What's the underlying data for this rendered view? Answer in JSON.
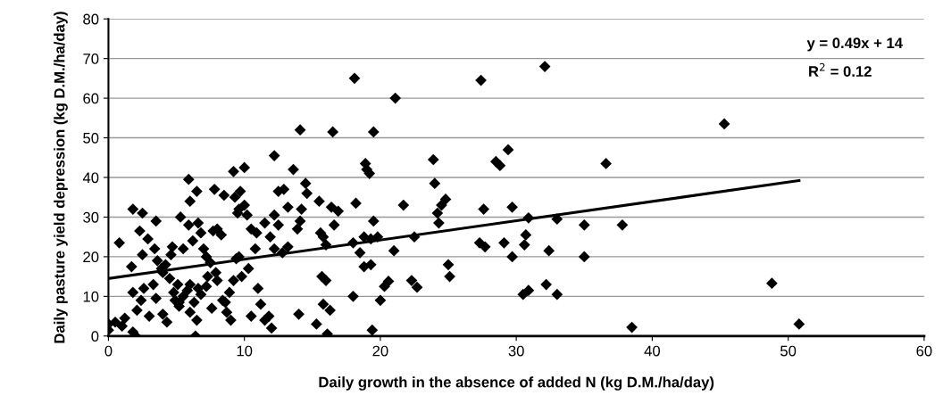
{
  "chart_data": {
    "type": "scatter",
    "xlabel": "Daily growth in the absence of added N (kg D.M./ha/day)",
    "ylabel": "Daily pasture yield depression (kg D.M./ha/day)",
    "xlim": [
      0,
      60
    ],
    "xticks": [
      0,
      10,
      20,
      30,
      40,
      50,
      60
    ],
    "ylim": [
      0,
      80
    ],
    "yticks": [
      0,
      10,
      20,
      30,
      40,
      50,
      60,
      70,
      80
    ],
    "grid": "y",
    "legend": false,
    "marker": "diamond",
    "annotations": [
      "y = 0.49x + 14",
      "R$^{2}$ = 0.12"
    ],
    "series": [
      {
        "color": "#000000",
        "x": [
          18.1,
          27.4,
          32.1,
          45.3,
          36.6,
          29.4,
          28.5,
          28.8,
          27.6,
          29.7,
          37.8,
          35,
          33,
          30.9,
          27.3,
          27.7,
          29.1,
          30.7,
          30.6,
          32.4,
          35,
          29.7,
          32.2,
          30.9,
          30.5,
          33,
          38.5,
          48.8,
          50.8,
          25,
          25.1,
          24.2,
          24.5,
          24.8,
          23.9,
          24,
          24.3,
          22.5,
          21.7,
          21,
          20.6,
          20.3,
          20,
          22.3,
          22.7,
          21.1,
          19.5,
          14.1,
          16.5,
          18.2,
          18.9,
          19,
          19.2,
          19.5,
          18.8,
          19.3,
          19.8,
          18,
          18.5,
          18.8,
          19.3,
          18,
          19.4,
          16.1,
          16.3,
          15.8,
          15.3,
          16,
          15.7,
          14,
          15.6,
          15.8,
          16,
          16.6,
          16.9,
          16.4,
          15.5,
          14.5,
          13.6,
          12.2,
          14.6,
          12.5,
          12.9,
          13.2,
          14.2,
          14.1,
          13.9,
          13.2,
          12.8,
          12.2,
          11.9,
          12.2,
          12.5,
          11.5,
          10.9,
          10.8,
          10.5,
          10.2,
          10,
          9.7,
          10,
          9.2,
          8.5,
          9.3,
          9.6,
          9.5,
          11.2,
          11.8,
          11.5,
          12,
          9.4,
          9.8,
          9.2,
          8.9,
          8.4,
          8.7,
          9,
          8.3,
          7.7,
          8,
          7.8,
          6.5,
          5.9,
          6,
          5.9,
          6.6,
          6.2,
          7,
          7.5,
          7.9,
          7.3,
          8,
          7.2,
          6.8,
          6.6,
          6,
          5.5,
          5.2,
          6,
          6.5,
          6.3,
          5.2,
          4.8,
          4.9,
          5.1,
          5.8,
          4.5,
          4.2,
          3.6,
          4.6,
          5.5,
          4.7,
          3.5,
          2.9,
          2.3,
          2.5,
          1.8,
          3.9,
          2.5,
          1.7,
          2.6,
          2.4,
          1.8,
          2.1,
          3,
          1.8,
          2,
          6.4,
          4,
          4.3,
          0.8,
          1.2,
          0.5,
          0,
          0,
          1,
          9.6,
          10.3,
          11,
          8.6,
          10.5,
          7.6,
          3.3,
          3.5,
          4,
          3.4,
          5.3,
          6.8,
          7.2
        ],
        "values": [
          65,
          64.5,
          68,
          53.5,
          43.5,
          47,
          44,
          43,
          32,
          32.5,
          28,
          28,
          29.5,
          29.8,
          23.5,
          22.5,
          23.5,
          25.5,
          23,
          21.5,
          20,
          20,
          13,
          11.5,
          10.5,
          10.5,
          2.2,
          13.3,
          3,
          18,
          15,
          31,
          33,
          34.5,
          44.5,
          38.5,
          28.5,
          25,
          33,
          21.5,
          13.8,
          12.5,
          9,
          14,
          12.3,
          60,
          51.5,
          52,
          51.5,
          33.5,
          43.5,
          42,
          41,
          29,
          25,
          24.5,
          25,
          23.5,
          21,
          17.5,
          18,
          10,
          1.5,
          0.5,
          6.5,
          8,
          3,
          14,
          15,
          5.5,
          26,
          25,
          23,
          28,
          31.5,
          32.5,
          34,
          38.5,
          42,
          45.5,
          36,
          36.5,
          37,
          32.5,
          32,
          29,
          27,
          22.5,
          21,
          22,
          25,
          30.5,
          28,
          28.5,
          26,
          22,
          27,
          30.5,
          33,
          36.5,
          42.5,
          41.5,
          35.5,
          35,
          32,
          31,
          8,
          5,
          4,
          2,
          19.5,
          15,
          14,
          11,
          9,
          6,
          4,
          25.5,
          26.5,
          27,
          37,
          36.5,
          39.5,
          34,
          28,
          28.5,
          24,
          22,
          18.5,
          16,
          15,
          14,
          12.5,
          10.5,
          12,
          13,
          10,
          8.5,
          6,
          4,
          8.5,
          7.5,
          11,
          9,
          13,
          11.5,
          14.5,
          18,
          19,
          20.5,
          22,
          22.5,
          29,
          24.5,
          26.5,
          31,
          32,
          17,
          20.5,
          17.5,
          12,
          9,
          11,
          6.5,
          5,
          1,
          0,
          0,
          5.5,
          3.5,
          23.5,
          4.5,
          3.5,
          3,
          1.5,
          2.5,
          20,
          17,
          12,
          8.5,
          5,
          7,
          13,
          9.5,
          16,
          22,
          30,
          26,
          20
        ]
      },
      {
        "type": "line",
        "color": "#000000",
        "marker": "none",
        "x": [
          0,
          50.8
        ],
        "values": [
          14.5,
          39.2
        ]
      }
    ]
  }
}
